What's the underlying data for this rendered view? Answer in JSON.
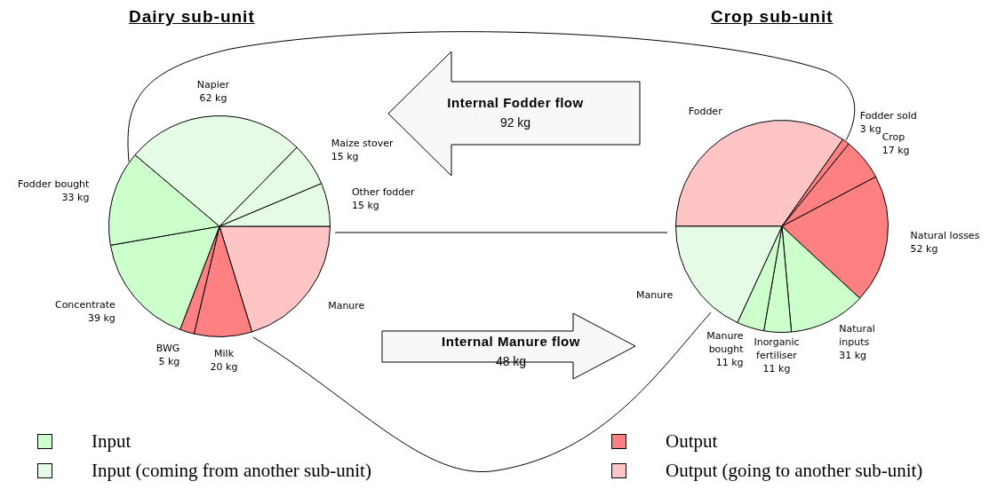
{
  "chart_data": [
    {
      "type": "pie",
      "title": "Dairy sub-unit",
      "categories": [
        "Manure",
        "Milk",
        "BWG",
        "Concentrate",
        "Fodder bought",
        "Napier",
        "Maize stover",
        "Other fodder"
      ],
      "values": [
        48,
        20,
        5,
        39,
        33,
        62,
        15,
        15
      ],
      "value_labels": [
        null,
        "20 kg",
        "5 kg",
        "39 kg",
        "33 kg",
        "62 kg",
        "15 kg",
        "15 kg"
      ],
      "colors": [
        "#ffc4c4",
        "#ff8080",
        "#ff8080",
        "#ccffcc",
        "#ccffcc",
        "#e6fbe6",
        "#e6fbe6",
        "#e6fbe6"
      ],
      "annotations": [
        "Input",
        "Input (coming from another sub-unit)",
        "Internal Manure flow",
        "48 kg"
      ]
    },
    {
      "type": "pie",
      "title": "Crop sub-unit",
      "categories": [
        "Fodder",
        "Fodder sold",
        "Crop",
        "Natural losses",
        "Natural inputs",
        "Inorganic fertiliser",
        "Manure bought",
        "Manure"
      ],
      "values": [
        92,
        3,
        17,
        52,
        31,
        11,
        11,
        48
      ],
      "value_labels": [
        null,
        "3 kg",
        "17 kg",
        "52 kg",
        "31 kg",
        "11 kg",
        "11 kg",
        null
      ],
      "colors": [
        "#ffc4c4",
        "#ff8080",
        "#ff8080",
        "#ff8080",
        "#ccffcc",
        "#ccffcc",
        "#ccffcc",
        "#e6fbe6"
      ],
      "annotations": [
        "Output",
        "Output (going to another sub-unit)",
        "Internal Fodder flow",
        "92 kg"
      ]
    }
  ]
}
